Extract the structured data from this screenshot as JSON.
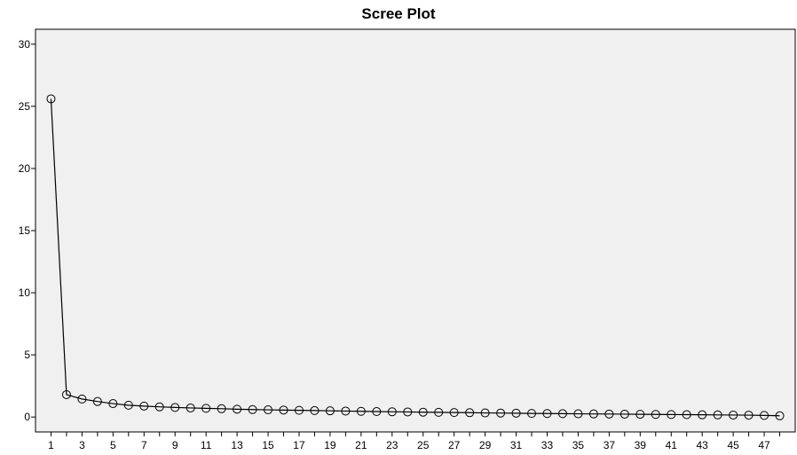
{
  "chart_data": {
    "type": "line",
    "title": "Scree Plot",
    "xlabel": "",
    "ylabel": "",
    "x": [
      1,
      2,
      3,
      4,
      5,
      6,
      7,
      8,
      9,
      10,
      11,
      12,
      13,
      14,
      15,
      16,
      17,
      18,
      19,
      20,
      21,
      22,
      23,
      24,
      25,
      26,
      27,
      28,
      29,
      30,
      31,
      32,
      33,
      34,
      35,
      36,
      37,
      38,
      39,
      40,
      41,
      42,
      43,
      44,
      45,
      46,
      47,
      48
    ],
    "series": [
      {
        "values": [
          25.6,
          1.8,
          1.45,
          1.25,
          1.08,
          0.95,
          0.88,
          0.82,
          0.77,
          0.73,
          0.7,
          0.67,
          0.63,
          0.6,
          0.58,
          0.56,
          0.54,
          0.52,
          0.5,
          0.48,
          0.46,
          0.44,
          0.42,
          0.41,
          0.39,
          0.38,
          0.36,
          0.35,
          0.33,
          0.32,
          0.31,
          0.29,
          0.28,
          0.27,
          0.26,
          0.25,
          0.24,
          0.23,
          0.22,
          0.21,
          0.2,
          0.19,
          0.18,
          0.17,
          0.16,
          0.15,
          0.13,
          0.1
        ]
      }
    ],
    "xticks": [
      "1",
      "3",
      "5",
      "7",
      "9",
      "11",
      "13",
      "15",
      "17",
      "19",
      "21",
      "23",
      "25",
      "27",
      "29",
      "31",
      "33",
      "35",
      "37",
      "39",
      "41",
      "43",
      "45",
      "47"
    ],
    "yticks": [
      "0",
      "5",
      "10",
      "15",
      "20",
      "25",
      "30"
    ],
    "xlim": [
      0,
      49
    ],
    "ylim": [
      -1.2,
      31.2
    ],
    "grid": false,
    "legend": "none",
    "colors": {
      "plot_bg": "#f0f0f0",
      "line": "#000000",
      "marker": "#000000"
    }
  }
}
